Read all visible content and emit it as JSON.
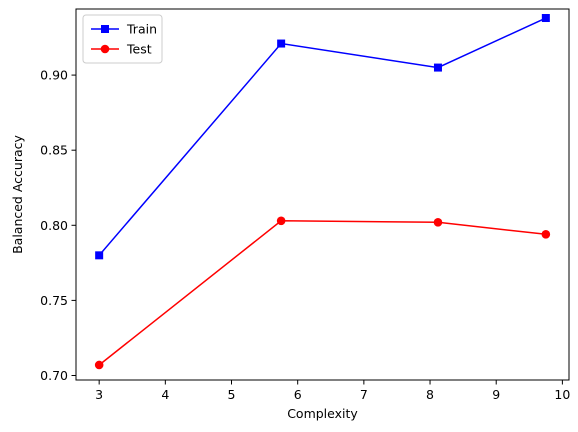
{
  "chart_data": {
    "type": "line",
    "title": "",
    "xlabel": "Complexity",
    "ylabel": "Balanced Accuracy",
    "xlim": [
      2.65,
      10.1
    ],
    "ylim": [
      0.697,
      0.944
    ],
    "xticks": [
      3,
      4,
      5,
      6,
      7,
      8,
      9,
      10
    ],
    "yticks": [
      0.7,
      0.75,
      0.8,
      0.85,
      0.9
    ],
    "ytick_labels": [
      "0.70",
      "0.75",
      "0.80",
      "0.85",
      "0.90"
    ],
    "xtick_labels": [
      "3",
      "4",
      "5",
      "6",
      "7",
      "8",
      "9",
      "10"
    ],
    "grid": false,
    "legend_position": "top-left",
    "series": [
      {
        "name": "Train",
        "color": "#0000ff",
        "marker": "square",
        "x": [
          3.0,
          5.75,
          8.12,
          9.75
        ],
        "y": [
          0.78,
          0.921,
          0.905,
          0.938
        ]
      },
      {
        "name": "Test",
        "color": "#ff0000",
        "marker": "circle",
        "x": [
          3.0,
          5.75,
          8.12,
          9.75
        ],
        "y": [
          0.707,
          0.803,
          0.802,
          0.794
        ]
      }
    ]
  }
}
